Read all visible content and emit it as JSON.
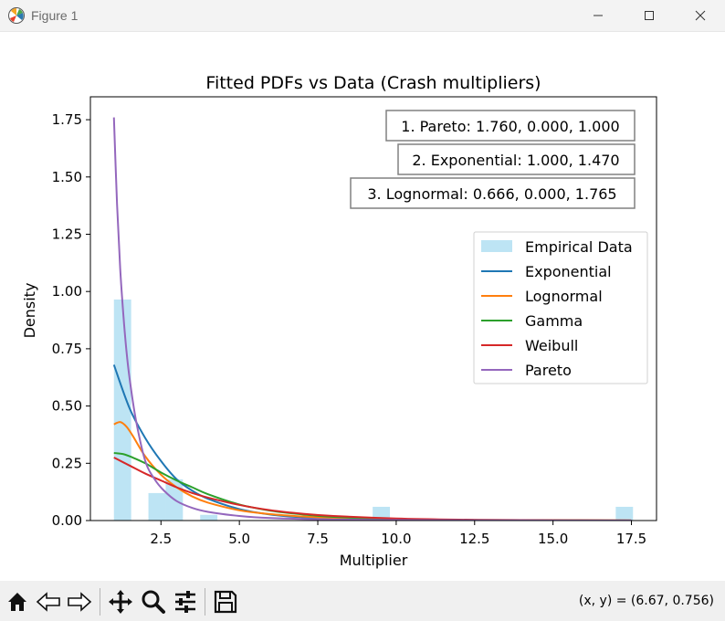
{
  "window": {
    "title": "Figure 1"
  },
  "toolbar": {
    "coords": "(x, y) = (6.67, 0.756)",
    "tools": [
      "home-icon",
      "back-icon",
      "forward-icon",
      "pan-icon",
      "zoom-icon",
      "configure-subplots-icon",
      "save-icon"
    ]
  },
  "annotations": [
    "1. Pareto: 1.760, 0.000, 1.000",
    "2. Exponential: 1.000, 1.470",
    "3. Lognormal: 0.666, 0.000, 1.765"
  ],
  "chart_data": {
    "type": "line",
    "title": "Fitted PDFs vs Data (Crash multipliers)",
    "xlabel": "Multiplier",
    "ylabel": "Density",
    "xlim": [
      0.25,
      18.3
    ],
    "ylim": [
      0,
      1.85
    ],
    "xticks": [
      2.5,
      5.0,
      7.5,
      10.0,
      12.5,
      15.0,
      17.5
    ],
    "xtick_labels": [
      "2.5",
      "5.0",
      "7.5",
      "10.0",
      "12.5",
      "15.0",
      "17.5"
    ],
    "yticks": [
      0,
      0.25,
      0.5,
      0.75,
      1.0,
      1.25,
      1.5,
      1.75
    ],
    "ytick_labels": [
      "0.00",
      "0.25",
      "0.50",
      "0.75",
      "1.00",
      "1.25",
      "1.50",
      "1.75"
    ],
    "grid": false,
    "legend_position": "center-right",
    "histogram": {
      "name": "Empirical Data",
      "color": "#87ceeb",
      "bins": [
        {
          "x0": 1.0,
          "x1": 1.55,
          "value": 0.965
        },
        {
          "x0": 2.1,
          "x1": 2.65,
          "value": 0.12
        },
        {
          "x0": 2.65,
          "x1": 3.2,
          "value": 0.18
        },
        {
          "x0": 3.75,
          "x1": 4.3,
          "value": 0.025
        },
        {
          "x0": 9.25,
          "x1": 9.8,
          "value": 0.06
        },
        {
          "x0": 17.0,
          "x1": 17.55,
          "value": 0.06
        }
      ]
    },
    "series": [
      {
        "name": "Exponential",
        "color": "#1f77b4",
        "x": [
          1.0,
          1.5,
          2,
          2.5,
          3,
          3.5,
          4,
          5,
          6,
          7,
          8,
          10,
          12,
          14,
          17.5
        ],
        "y": [
          0.68,
          0.49,
          0.36,
          0.26,
          0.18,
          0.13,
          0.095,
          0.05,
          0.026,
          0.014,
          0.007,
          0.002,
          0.0005,
          0.0002,
          0.0
        ]
      },
      {
        "name": "Lognormal",
        "color": "#ff7f0e",
        "x": [
          1.0,
          1.2,
          1.4,
          1.6,
          2,
          2.5,
          3,
          3.5,
          4,
          5,
          6,
          7,
          8,
          10,
          12,
          14,
          17.5
        ],
        "y": [
          0.42,
          0.43,
          0.41,
          0.37,
          0.28,
          0.2,
          0.145,
          0.105,
          0.078,
          0.045,
          0.028,
          0.018,
          0.012,
          0.006,
          0.003,
          0.002,
          0.001
        ]
      },
      {
        "name": "Gamma",
        "color": "#2ca02c",
        "x": [
          1.0,
          1.3,
          1.6,
          2,
          2.5,
          3,
          3.5,
          4,
          5,
          6,
          7,
          8,
          10,
          12,
          14,
          17.5
        ],
        "y": [
          0.295,
          0.29,
          0.275,
          0.25,
          0.21,
          0.175,
          0.145,
          0.115,
          0.07,
          0.043,
          0.027,
          0.016,
          0.006,
          0.002,
          0.001,
          0.0
        ]
      },
      {
        "name": "Weibull",
        "color": "#d62728",
        "x": [
          1.0,
          1.5,
          2,
          2.5,
          3,
          3.5,
          4,
          5,
          6,
          7,
          8,
          10,
          12,
          14,
          17.5
        ],
        "y": [
          0.275,
          0.24,
          0.205,
          0.175,
          0.145,
          0.12,
          0.1,
          0.068,
          0.045,
          0.03,
          0.02,
          0.009,
          0.004,
          0.002,
          0.0
        ]
      },
      {
        "name": "Pareto",
        "color": "#9467bd",
        "x": [
          1.0,
          1.1,
          1.2,
          1.3,
          1.4,
          1.5,
          1.7,
          2,
          2.3,
          2.6,
          3,
          3.5,
          4,
          5,
          6,
          8,
          10,
          12,
          15,
          17.5
        ],
        "y": [
          1.76,
          1.38,
          1.1,
          0.9,
          0.74,
          0.62,
          0.44,
          0.26,
          0.18,
          0.13,
          0.085,
          0.055,
          0.038,
          0.02,
          0.011,
          0.0045,
          0.0023,
          0.0013,
          0.0007,
          0.0004
        ]
      }
    ]
  }
}
